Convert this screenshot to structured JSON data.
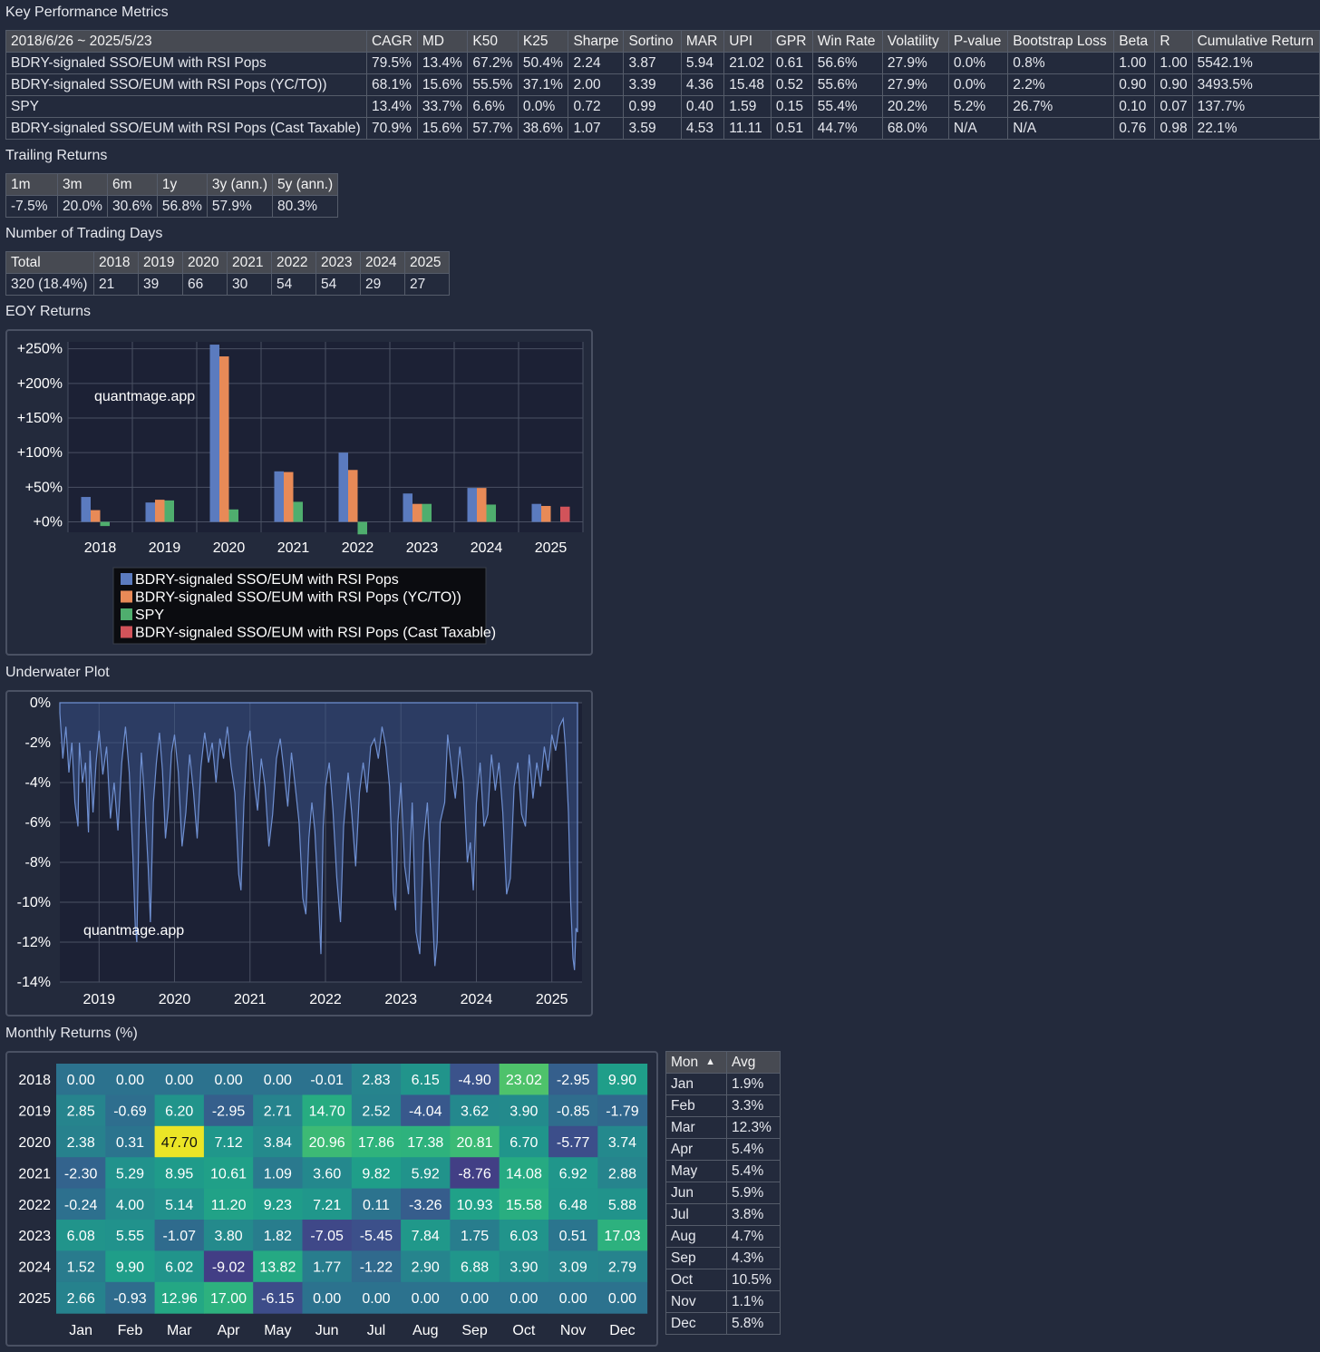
{
  "sections": {
    "key_metrics": "Key Performance Metrics",
    "trailing": "Trailing Returns",
    "trading_days": "Number of Trading Days",
    "eoy": "EOY Returns",
    "underwater": "Underwater Plot",
    "monthly": "Monthly Returns (%)"
  },
  "metrics_table": {
    "headers": [
      "2018/6/26 ~ 2025/5/23",
      "CAGR",
      "MD",
      "K50",
      "K25",
      "Sharpe",
      "Sortino",
      "MAR",
      "UPI",
      "GPR",
      "Win Rate",
      "Volatility",
      "P-value",
      "Bootstrap Loss",
      "Beta",
      "R",
      "Cumulative Return"
    ],
    "rows": [
      [
        "BDRY-signaled SSO/EUM with RSI Pops",
        "79.5%",
        "13.4%",
        "67.2%",
        "50.4%",
        "2.24",
        "3.87",
        "5.94",
        "21.02",
        "0.61",
        "56.6%",
        "27.9%",
        "0.0%",
        "0.8%",
        "1.00",
        "1.00",
        "5542.1%"
      ],
      [
        "BDRY-signaled SSO/EUM with RSI Pops (YC/TO))",
        "68.1%",
        "15.6%",
        "55.5%",
        "37.1%",
        "2.00",
        "3.39",
        "4.36",
        "15.48",
        "0.52",
        "55.6%",
        "27.9%",
        "0.0%",
        "2.2%",
        "0.90",
        "0.90",
        "3493.5%"
      ],
      [
        "SPY",
        "13.4%",
        "33.7%",
        "6.6%",
        "0.0%",
        "0.72",
        "0.99",
        "0.40",
        "1.59",
        "0.15",
        "55.4%",
        "20.2%",
        "5.2%",
        "26.7%",
        "0.10",
        "0.07",
        "137.7%"
      ],
      [
        "BDRY-signaled SSO/EUM with RSI Pops (Cast Taxable)",
        "70.9%",
        "15.6%",
        "57.7%",
        "38.6%",
        "1.07",
        "3.59",
        "4.53",
        "11.11",
        "0.51",
        "44.7%",
        "68.0%",
        "N/A",
        "N/A",
        "0.76",
        "0.98",
        "22.1%"
      ]
    ]
  },
  "trailing_table": {
    "headers": [
      "1m",
      "3m",
      "6m",
      "1y",
      "3y (ann.)",
      "5y (ann.)"
    ],
    "rows": [
      [
        "-7.5%",
        "20.0%",
        "30.6%",
        "56.8%",
        "57.9%",
        "80.3%"
      ]
    ]
  },
  "days_table": {
    "headers": [
      "Total",
      "2018",
      "2019",
      "2020",
      "2021",
      "2022",
      "2023",
      "2024",
      "2025"
    ],
    "rows": [
      [
        "320 (18.4%)",
        "21",
        "39",
        "66",
        "30",
        "54",
        "54",
        "29",
        "27"
      ]
    ]
  },
  "watermark": "quantmage.app",
  "colors": {
    "blue": "#5b7bbf",
    "orange": "#e88a57",
    "green": "#4fae6e",
    "red": "#d2535a",
    "line": "#6f90d2"
  },
  "chart_data": [
    {
      "type": "bar",
      "categories": [
        "2018",
        "2019",
        "2020",
        "2021",
        "2022",
        "2023",
        "2024",
        "2025"
      ],
      "y_ticks": [
        "+0%",
        "+50%",
        "+100%",
        "+150%",
        "+200%",
        "+250%"
      ],
      "ylim": [
        -15,
        260
      ],
      "series": [
        {
          "name": "BDRY-signaled SSO/EUM with RSI Pops",
          "values": [
            36,
            28,
            256,
            73,
            100,
            41,
            49,
            26
          ]
        },
        {
          "name": "BDRY-signaled SSO/EUM with RSI Pops (YC/TO))",
          "values": [
            17,
            32,
            239,
            72,
            75,
            26,
            49,
            23
          ]
        },
        {
          "name": "SPY",
          "values": [
            -6,
            31,
            18,
            29,
            -18,
            26,
            25,
            null
          ]
        },
        {
          "name": "BDRY-signaled SSO/EUM with RSI Pops (Cast Taxable)",
          "values": [
            null,
            null,
            null,
            null,
            null,
            null,
            null,
            22
          ]
        }
      ]
    },
    {
      "type": "area",
      "x_ticks": [
        "2019",
        "2020",
        "2021",
        "2022",
        "2023",
        "2024",
        "2025"
      ],
      "y_ticks": [
        "0%",
        "-2%",
        "-4%",
        "-6%",
        "-8%",
        "-10%",
        "-12%",
        "-14%"
      ],
      "xlim": [
        2018.48,
        2025.4
      ],
      "ylim": [
        -14,
        0
      ],
      "series": [
        {
          "points": [
            [
              2018.48,
              -0.5
            ],
            [
              2018.52,
              -2.8
            ],
            [
              2018.56,
              -1.2
            ],
            [
              2018.6,
              -3.5
            ],
            [
              2018.64,
              -2
            ],
            [
              2018.68,
              -5
            ],
            [
              2018.72,
              -6.2
            ],
            [
              2018.74,
              -2
            ],
            [
              2018.78,
              -4
            ],
            [
              2018.82,
              -3
            ],
            [
              2018.86,
              -6.5
            ],
            [
              2018.88,
              -2.4
            ],
            [
              2018.92,
              -5.5
            ],
            [
              2018.96,
              -3
            ],
            [
              2019.0,
              -1.4
            ],
            [
              2019.05,
              -3.6
            ],
            [
              2019.1,
              -2.2
            ],
            [
              2019.15,
              -5.8
            ],
            [
              2019.2,
              -4
            ],
            [
              2019.25,
              -6.4
            ],
            [
              2019.3,
              -3
            ],
            [
              2019.35,
              -1.2
            ],
            [
              2019.4,
              -3.5
            ],
            [
              2019.45,
              -7.8
            ],
            [
              2019.48,
              -11.2
            ],
            [
              2019.5,
              -12.0
            ],
            [
              2019.53,
              -6
            ],
            [
              2019.56,
              -2.5
            ],
            [
              2019.6,
              -4.6
            ],
            [
              2019.65,
              -8.2
            ],
            [
              2019.68,
              -11
            ],
            [
              2019.72,
              -5
            ],
            [
              2019.76,
              -3
            ],
            [
              2019.8,
              -1.5
            ],
            [
              2019.84,
              -3.4
            ],
            [
              2019.88,
              -6.8
            ],
            [
              2019.92,
              -5.2
            ],
            [
              2019.96,
              -2.5
            ],
            [
              2020.0,
              -1.6
            ],
            [
              2020.05,
              -3.5
            ],
            [
              2020.1,
              -7.2
            ],
            [
              2020.15,
              -5.5
            ],
            [
              2020.2,
              -2.6
            ],
            [
              2020.25,
              -4.4
            ],
            [
              2020.3,
              -6.8
            ],
            [
              2020.35,
              -3.2
            ],
            [
              2020.4,
              -1.5
            ],
            [
              2020.45,
              -3
            ],
            [
              2020.5,
              -2
            ],
            [
              2020.55,
              -4
            ],
            [
              2020.6,
              -1.8
            ],
            [
              2020.65,
              -2.8
            ],
            [
              2020.7,
              -1.2
            ],
            [
              2020.75,
              -3.2
            ],
            [
              2020.8,
              -4.5
            ],
            [
              2020.85,
              -8.6
            ],
            [
              2020.88,
              -9.4
            ],
            [
              2020.92,
              -5
            ],
            [
              2020.96,
              -2.2
            ],
            [
              2021.0,
              -1.4
            ],
            [
              2021.05,
              -3.8
            ],
            [
              2021.1,
              -5.4
            ],
            [
              2021.15,
              -2.8
            ],
            [
              2021.2,
              -4.2
            ],
            [
              2021.25,
              -7.2
            ],
            [
              2021.3,
              -5.6
            ],
            [
              2021.35,
              -2.8
            ],
            [
              2021.4,
              -1.8
            ],
            [
              2021.45,
              -3.4
            ],
            [
              2021.5,
              -5.2
            ],
            [
              2021.55,
              -2.5
            ],
            [
              2021.6,
              -4.2
            ],
            [
              2021.65,
              -6
            ],
            [
              2021.7,
              -9.8
            ],
            [
              2021.74,
              -10.6
            ],
            [
              2021.78,
              -6.8
            ],
            [
              2021.82,
              -5
            ],
            [
              2021.86,
              -6.4
            ],
            [
              2021.9,
              -9.4
            ],
            [
              2021.94,
              -12.6
            ],
            [
              2021.97,
              -6.2
            ],
            [
              2022.0,
              -4.2
            ],
            [
              2022.05,
              -3
            ],
            [
              2022.1,
              -5.4
            ],
            [
              2022.15,
              -8.8
            ],
            [
              2022.2,
              -11
            ],
            [
              2022.24,
              -6.2
            ],
            [
              2022.3,
              -3.5
            ],
            [
              2022.35,
              -5.6
            ],
            [
              2022.4,
              -8.2
            ],
            [
              2022.45,
              -4.5
            ],
            [
              2022.5,
              -3
            ],
            [
              2022.55,
              -4.5
            ],
            [
              2022.6,
              -2.2
            ],
            [
              2022.65,
              -1.8
            ],
            [
              2022.7,
              -2.8
            ],
            [
              2022.75,
              -1.2
            ],
            [
              2022.8,
              -2.2
            ],
            [
              2022.85,
              -4.2
            ],
            [
              2022.9,
              -9.5
            ],
            [
              2022.93,
              -10.4
            ],
            [
              2022.96,
              -6
            ],
            [
              2023.0,
              -4
            ],
            [
              2023.05,
              -8.2
            ],
            [
              2023.1,
              -9.6
            ],
            [
              2023.15,
              -5
            ],
            [
              2023.2,
              -11.5
            ],
            [
              2023.25,
              -12.6
            ],
            [
              2023.3,
              -7
            ],
            [
              2023.35,
              -5
            ],
            [
              2023.4,
              -9
            ],
            [
              2023.45,
              -13.2
            ],
            [
              2023.48,
              -12
            ],
            [
              2023.52,
              -6
            ],
            [
              2023.58,
              -5
            ],
            [
              2023.62,
              -1.6
            ],
            [
              2023.68,
              -3.6
            ],
            [
              2023.72,
              -4.8
            ],
            [
              2023.78,
              -2.2
            ],
            [
              2023.83,
              -4
            ],
            [
              2023.88,
              -8
            ],
            [
              2023.92,
              -7
            ],
            [
              2023.96,
              -9.4
            ],
            [
              2024.0,
              -5
            ],
            [
              2024.05,
              -3
            ],
            [
              2024.1,
              -6.2
            ],
            [
              2024.15,
              -5.6
            ],
            [
              2024.2,
              -2.6
            ],
            [
              2024.25,
              -4.4
            ],
            [
              2024.3,
              -3
            ],
            [
              2024.35,
              -5.5
            ],
            [
              2024.4,
              -9.6
            ],
            [
              2024.45,
              -8.8
            ],
            [
              2024.5,
              -4.2
            ],
            [
              2024.55,
              -3
            ],
            [
              2024.6,
              -5.6
            ],
            [
              2024.65,
              -6.2
            ],
            [
              2024.7,
              -2.6
            ],
            [
              2024.75,
              -4.8
            ],
            [
              2024.8,
              -3
            ],
            [
              2024.85,
              -4.2
            ],
            [
              2024.9,
              -2.2
            ],
            [
              2024.95,
              -3.4
            ],
            [
              2025.0,
              -1.6
            ],
            [
              2025.05,
              -2.4
            ],
            [
              2025.1,
              -1.2
            ],
            [
              2025.15,
              -0.8
            ],
            [
              2025.18,
              -2.2
            ],
            [
              2025.22,
              -5.5
            ],
            [
              2025.25,
              -10
            ],
            [
              2025.28,
              -12.8
            ],
            [
              2025.3,
              -13.4
            ],
            [
              2025.32,
              -11.3
            ],
            [
              2025.34,
              -11.5
            ]
          ]
        }
      ]
    },
    {
      "type": "heatmap",
      "rows": [
        "2018",
        "2019",
        "2020",
        "2021",
        "2022",
        "2023",
        "2024",
        "2025"
      ],
      "columns": [
        "Jan",
        "Feb",
        "Mar",
        "Apr",
        "May",
        "Jun",
        "Jul",
        "Aug",
        "Sep",
        "Oct",
        "Nov",
        "Dec"
      ],
      "values": [
        [
          "0.00",
          "0.00",
          "0.00",
          "0.00",
          "0.00",
          "-0.01",
          "2.83",
          "6.15",
          "-4.90",
          "23.02",
          "-2.95",
          "9.90"
        ],
        [
          "2.85",
          "-0.69",
          "6.20",
          "-2.95",
          "2.71",
          "14.70",
          "2.52",
          "-4.04",
          "3.62",
          "3.90",
          "-0.85",
          "-1.79"
        ],
        [
          "2.38",
          "0.31",
          "47.70",
          "7.12",
          "3.84",
          "20.96",
          "17.86",
          "17.38",
          "20.81",
          "6.70",
          "-5.77",
          "3.74"
        ],
        [
          "-2.30",
          "5.29",
          "8.95",
          "10.61",
          "1.09",
          "3.60",
          "9.82",
          "5.92",
          "-8.76",
          "14.08",
          "6.92",
          "2.88"
        ],
        [
          "-0.24",
          "4.00",
          "5.14",
          "11.20",
          "9.23",
          "7.21",
          "0.11",
          "-3.26",
          "10.93",
          "15.58",
          "6.48",
          "5.88"
        ],
        [
          "6.08",
          "5.55",
          "-1.07",
          "3.80",
          "1.82",
          "-7.05",
          "-5.45",
          "7.84",
          "1.75",
          "6.03",
          "0.51",
          "17.03"
        ],
        [
          "1.52",
          "9.90",
          "6.02",
          "-9.02",
          "13.82",
          "1.77",
          "-1.22",
          "2.90",
          "6.88",
          "3.90",
          "3.09",
          "2.79"
        ],
        [
          "2.66",
          "-0.93",
          "12.96",
          "17.00",
          "-6.15",
          "0.00",
          "0.00",
          "0.00",
          "0.00",
          "0.00",
          "0.00",
          "0.00"
        ]
      ]
    }
  ],
  "avg_table": {
    "headers": [
      "Mon",
      "Avg"
    ],
    "sort_icon": "▲",
    "rows": [
      [
        "Jan",
        "1.9%"
      ],
      [
        "Feb",
        "3.3%"
      ],
      [
        "Mar",
        "12.3%"
      ],
      [
        "Apr",
        "5.4%"
      ],
      [
        "May",
        "5.4%"
      ],
      [
        "Jun",
        "5.9%"
      ],
      [
        "Jul",
        "3.8%"
      ],
      [
        "Aug",
        "4.7%"
      ],
      [
        "Sep",
        "4.3%"
      ],
      [
        "Oct",
        "10.5%"
      ],
      [
        "Nov",
        "1.1%"
      ],
      [
        "Dec",
        "5.8%"
      ]
    ]
  }
}
